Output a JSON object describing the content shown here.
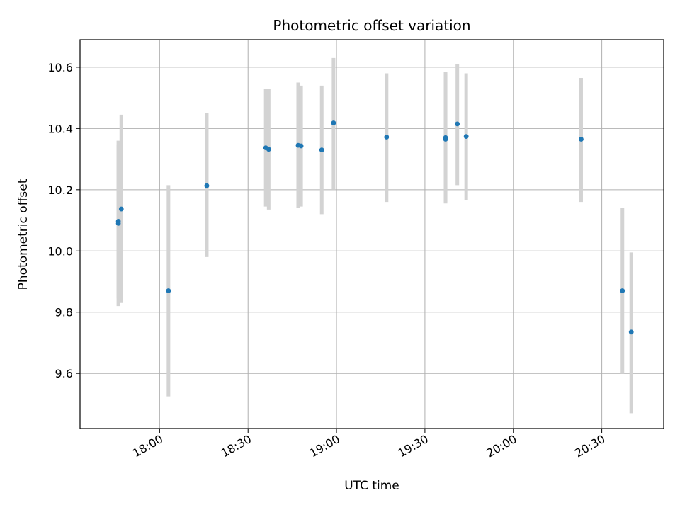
{
  "chart_data": {
    "type": "scatter",
    "title": "Photometric offset variation",
    "xlabel": "UTC time",
    "ylabel": "Photometric offset",
    "x_ticks": [
      "18:00",
      "18:30",
      "19:00",
      "19:30",
      "20:00",
      "20:30"
    ],
    "y_ticks": [
      "9.6",
      "9.8",
      "10.0",
      "10.2",
      "10.4",
      "10.6"
    ],
    "xlim": [
      "17:33",
      "20:51"
    ],
    "ylim": [
      9.42,
      10.69
    ],
    "grid": true,
    "error_bar_color": "#d3d3d3",
    "marker_color": "#1f77b4",
    "points": [
      {
        "t": "17:46",
        "y": 10.097,
        "ylow": 9.845,
        "yhigh": 10.345
      },
      {
        "t": "17:46",
        "y": 10.09,
        "ylow": 9.82,
        "yhigh": 10.36
      },
      {
        "t": "17:47",
        "y": 10.137,
        "ylow": 9.83,
        "yhigh": 10.445
      },
      {
        "t": "18:03",
        "y": 9.87,
        "ylow": 9.525,
        "yhigh": 10.215
      },
      {
        "t": "18:16",
        "y": 10.213,
        "ylow": 9.98,
        "yhigh": 10.45
      },
      {
        "t": "18:36",
        "y": 10.337,
        "ylow": 10.145,
        "yhigh": 10.53
      },
      {
        "t": "18:37",
        "y": 10.332,
        "ylow": 10.135,
        "yhigh": 10.53
      },
      {
        "t": "18:47",
        "y": 10.345,
        "ylow": 10.14,
        "yhigh": 10.55
      },
      {
        "t": "18:48",
        "y": 10.343,
        "ylow": 10.145,
        "yhigh": 10.54
      },
      {
        "t": "18:55",
        "y": 10.33,
        "ylow": 10.12,
        "yhigh": 10.54
      },
      {
        "t": "18:59",
        "y": 10.418,
        "ylow": 10.2,
        "yhigh": 10.63
      },
      {
        "t": "19:17",
        "y": 10.372,
        "ylow": 10.16,
        "yhigh": 10.58
      },
      {
        "t": "19:37",
        "y": 10.365,
        "ylow": 10.155,
        "yhigh": 10.585
      },
      {
        "t": "19:37",
        "y": 10.37,
        "ylow": 10.16,
        "yhigh": 10.58
      },
      {
        "t": "19:41",
        "y": 10.415,
        "ylow": 10.215,
        "yhigh": 10.61
      },
      {
        "t": "19:44",
        "y": 10.374,
        "ylow": 10.165,
        "yhigh": 10.58
      },
      {
        "t": "20:23",
        "y": 10.365,
        "ylow": 10.16,
        "yhigh": 10.565
      },
      {
        "t": "20:37",
        "y": 9.87,
        "ylow": 9.6,
        "yhigh": 10.14
      },
      {
        "t": "20:40",
        "y": 9.735,
        "ylow": 9.47,
        "yhigh": 9.995
      }
    ]
  }
}
